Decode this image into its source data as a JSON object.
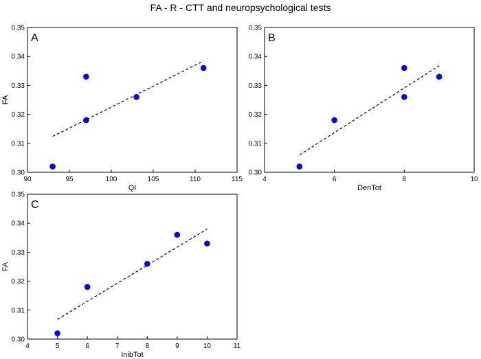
{
  "title": "FA - R - CTT and neuropsychological tests",
  "colors": {
    "marker": "#0000ee",
    "axes": "#000000",
    "fit_line": "#000000",
    "background": "#ffffff"
  },
  "chart_data": [
    {
      "type": "scatter",
      "panel_label": "A",
      "xlabel": "QI",
      "ylabel": "FA",
      "xlim": [
        90,
        115
      ],
      "ylim": [
        0.3,
        0.35
      ],
      "xticks": [
        "90",
        "95",
        "100",
        "105",
        "110",
        "115"
      ],
      "yticks": [
        "0.30",
        "0.31",
        "0.32",
        "0.33",
        "0.34",
        "0.35"
      ],
      "points": [
        {
          "x": 93,
          "y": 0.302
        },
        {
          "x": 97,
          "y": 0.318
        },
        {
          "x": 97,
          "y": 0.333
        },
        {
          "x": 103,
          "y": 0.326
        },
        {
          "x": 111,
          "y": 0.336
        }
      ],
      "fit": {
        "x": [
          93,
          111
        ],
        "y": [
          0.3124,
          0.3384
        ],
        "style": "dashed"
      }
    },
    {
      "type": "scatter",
      "panel_label": "B",
      "xlabel": "DenTot",
      "ylabel": "FA",
      "xlim": [
        4,
        10
      ],
      "ylim": [
        0.3,
        0.35
      ],
      "xticks": [
        "4",
        "6",
        "8",
        "10"
      ],
      "yticks": [
        "0.30",
        "0.31",
        "0.32",
        "0.33",
        "0.34",
        "0.35"
      ],
      "points": [
        {
          "x": 5,
          "y": 0.302
        },
        {
          "x": 6,
          "y": 0.318
        },
        {
          "x": 8,
          "y": 0.326
        },
        {
          "x": 8,
          "y": 0.336
        },
        {
          "x": 9,
          "y": 0.333
        }
      ],
      "fit": {
        "x": [
          5,
          9
        ],
        "y": [
          0.306,
          0.3368
        ],
        "style": "dashed"
      }
    },
    {
      "type": "scatter",
      "panel_label": "C",
      "xlabel": "InibTot",
      "ylabel": "FA",
      "xlim": [
        4,
        11
      ],
      "ylim": [
        0.3,
        0.35
      ],
      "xticks": [
        "4",
        "5",
        "6",
        "7",
        "8",
        "9",
        "10",
        "11"
      ],
      "yticks": [
        "0.30",
        "0.31",
        "0.32",
        "0.33",
        "0.34",
        "0.35"
      ],
      "points": [
        {
          "x": 5,
          "y": 0.302
        },
        {
          "x": 6,
          "y": 0.318
        },
        {
          "x": 8,
          "y": 0.326
        },
        {
          "x": 9,
          "y": 0.336
        },
        {
          "x": 10,
          "y": 0.333
        }
      ],
      "fit": {
        "x": [
          5,
          10
        ],
        "y": [
          0.3068,
          0.338
        ],
        "style": "dashed"
      }
    }
  ]
}
